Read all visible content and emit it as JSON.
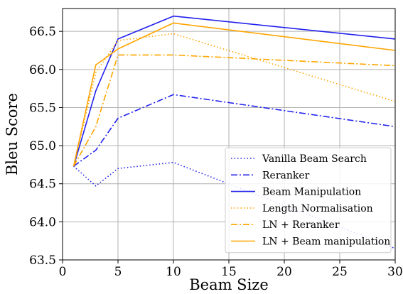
{
  "chart_data": {
    "type": "line",
    "xlabel": "Beam Size",
    "ylabel": "Bleu Score",
    "xlim": [
      0,
      30
    ],
    "ylim": [
      63.5,
      66.8
    ],
    "xticks": [
      0,
      5,
      10,
      15,
      20,
      25,
      30
    ],
    "yticks": [
      63.5,
      64.0,
      64.5,
      65.0,
      65.5,
      66.0,
      66.5
    ],
    "ytick_labels": [
      "63.5",
      "64.0",
      "64.5",
      "65.0",
      "65.5",
      "66.0",
      "66.5"
    ],
    "grid": true,
    "legend_position": "bottom-right",
    "x": [
      1,
      3,
      5,
      10,
      30
    ],
    "series": [
      {
        "name": "Vanilla Beam Search",
        "values": [
          64.73,
          64.47,
          64.7,
          64.78,
          63.65
        ],
        "color": "#2222ee",
        "dash": "dotted"
      },
      {
        "name": "Reranker",
        "values": [
          64.73,
          64.94,
          65.36,
          65.67,
          65.25
        ],
        "color": "#2222ee",
        "dash": "dashdot"
      },
      {
        "name": "Beam Manipulation",
        "values": [
          64.73,
          65.72,
          66.4,
          66.7,
          66.4
        ],
        "color": "#2222ee",
        "dash": "solid"
      },
      {
        "name": "Length Normalisation",
        "values": [
          64.73,
          65.96,
          66.38,
          66.47,
          65.58
        ],
        "color": "#ffa500",
        "dash": "dotted"
      },
      {
        "name": "LN + Reranker",
        "values": [
          64.73,
          65.25,
          66.19,
          66.19,
          66.05
        ],
        "color": "#ffa500",
        "dash": "dashdot"
      },
      {
        "name": "LN + Beam manipulation",
        "values": [
          64.73,
          66.06,
          66.27,
          66.61,
          66.25
        ],
        "color": "#ffa500",
        "dash": "solid"
      }
    ]
  }
}
